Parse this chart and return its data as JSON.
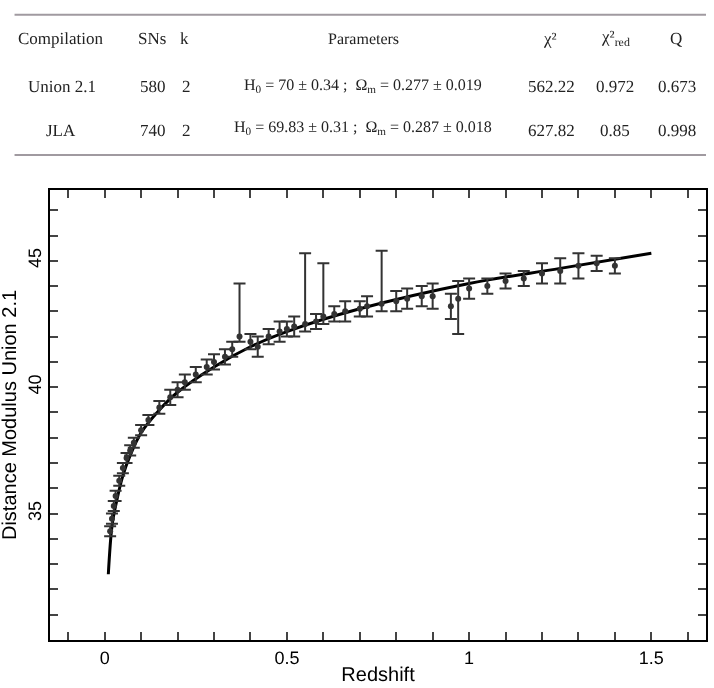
{
  "chart_data": {
    "type": "scatter",
    "xlabel": "Redshift",
    "ylabel": "Distance Modulus Union 2.1",
    "annotations": [
      "Compilation",
      "SNs",
      "k",
      "Parameters",
      "χ²",
      "χ²$_{red}$",
      "Q",
      "Union 2.1",
      "580",
      "2",
      "H$_{0}$ = 70 ± 0.34 ;  Ω$_{m}$ = 0.277 ± 0.019",
      "562.22",
      "0.972",
      "0.673",
      "JLA",
      "740",
      "2",
      "H$_{0}$ = 69.83 ± 0.31 ;  Ω$_{m}$ = 0.287 ± 0.018",
      "627.82",
      "0.85",
      "0.998"
    ],
    "xlim": [
      -0.15,
      1.65
    ],
    "xticks": [
      {
        "value": -0.1,
        "label": null
      },
      0,
      {
        "value": 0.1,
        "label": null
      },
      {
        "value": 0.2,
        "label": null
      },
      {
        "value": 0.3,
        "label": null
      },
      {
        "value": 0.4,
        "label": null
      },
      0.5,
      {
        "value": 0.6,
        "label": null
      },
      {
        "value": 0.7,
        "label": null
      },
      {
        "value": 0.8,
        "label": null
      },
      {
        "value": 0.9,
        "label": null
      },
      1,
      {
        "value": 1.1,
        "label": null
      },
      {
        "value": 1.2,
        "label": null
      },
      {
        "value": 1.3,
        "label": null
      },
      {
        "value": 1.4,
        "label": null
      },
      1.5,
      {
        "value": 1.6,
        "label": null
      }
    ],
    "ylim": [
      30,
      47.8
    ],
    "yticks": [
      {
        "value": 31,
        "label": null
      },
      {
        "value": 32,
        "label": null
      },
      {
        "value": 33,
        "label": null
      },
      {
        "value": 34,
        "label": null
      },
      35,
      {
        "value": 36,
        "label": null
      },
      {
        "value": 37,
        "label": null
      },
      {
        "value": 38,
        "label": null
      },
      {
        "value": 39,
        "label": null
      },
      40,
      {
        "value": 41,
        "label": null
      },
      {
        "value": 42,
        "label": null
      },
      {
        "value": 43,
        "label": null
      },
      {
        "value": 44,
        "label": null
      },
      45,
      {
        "value": 46,
        "label": null
      },
      {
        "value": 47,
        "label": null
      }
    ],
    "series": [
      {
        "color": "#333333",
        "marker": "circle",
        "x": [
          0.015,
          0.02,
          0.025,
          0.03,
          0.04,
          0.05,
          0.06,
          0.07,
          0.08,
          0.1,
          0.12,
          0.15,
          0.18,
          0.2,
          0.22,
          0.25,
          0.28,
          0.3,
          0.33,
          0.35,
          0.37,
          0.4,
          0.42,
          0.45,
          0.48,
          0.5,
          0.52,
          0.55,
          0.58,
          0.6,
          0.63,
          0.66,
          0.7,
          0.72,
          0.76,
          0.8,
          0.83,
          0.87,
          0.9,
          0.95,
          0.97,
          1.0,
          1.05,
          1.1,
          1.15,
          1.2,
          1.25,
          1.3,
          1.35,
          1.4
        ],
        "values": [
          34.3,
          34.8,
          35.3,
          35.7,
          36.3,
          36.8,
          37.2,
          37.5,
          37.8,
          38.3,
          38.7,
          39.2,
          39.6,
          39.9,
          40.2,
          40.5,
          40.8,
          41.0,
          41.2,
          41.5,
          42.0,
          41.8,
          41.6,
          42.0,
          42.2,
          42.3,
          42.4,
          42.5,
          42.6,
          42.8,
          42.9,
          43.0,
          43.1,
          43.2,
          43.3,
          43.4,
          43.5,
          43.6,
          43.6,
          43.2,
          43.5,
          43.9,
          44.0,
          44.2,
          44.3,
          44.5,
          44.6,
          44.8,
          44.9,
          44.8
        ],
        "errors": [
          0.2,
          0.2,
          0.2,
          0.2,
          0.2,
          0.2,
          0.2,
          0.2,
          0.2,
          0.2,
          0.2,
          0.25,
          0.3,
          0.3,
          0.3,
          0.3,
          0.3,
          0.3,
          0.3,
          0.3,
          [
            41.8,
            44.1
          ],
          0.3,
          0.4,
          0.3,
          0.4,
          0.3,
          0.4,
          [
            42.2,
            45.3
          ],
          0.3,
          [
            42.5,
            44.9
          ],
          0.3,
          0.4,
          0.3,
          0.4,
          [
            43.0,
            45.4
          ],
          0.4,
          0.4,
          0.4,
          0.5,
          0.5,
          [
            42.1,
            44.2
          ],
          0.4,
          0.3,
          0.3,
          0.3,
          0.4,
          0.5,
          0.5,
          0.3,
          0.3
        ]
      },
      {
        "type": "line",
        "color": "#000000",
        "line_style": "solid",
        "x": [
          0.01,
          0.02,
          0.03,
          0.05,
          0.07,
          0.1,
          0.15,
          0.2,
          0.3,
          0.4,
          0.5,
          0.7,
          1.0,
          1.25,
          1.5
        ],
        "values": [
          32.6,
          34.5,
          35.3,
          36.5,
          37.3,
          38.2,
          39.1,
          39.8,
          40.8,
          41.6,
          42.2,
          43.1,
          44.1,
          44.7,
          45.3
        ]
      }
    ]
  }
}
